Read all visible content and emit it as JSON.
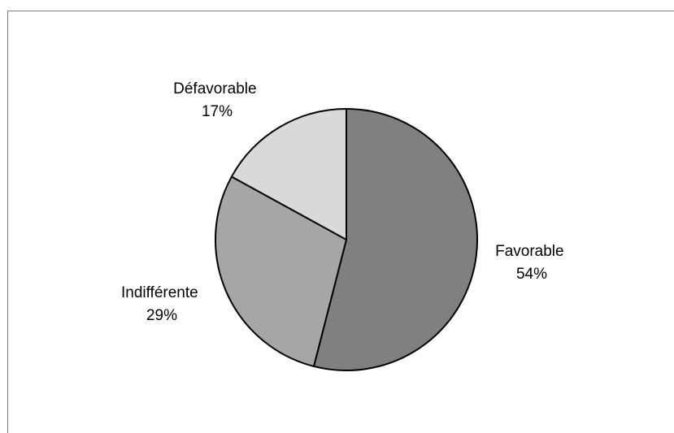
{
  "chart_data": {
    "type": "pie",
    "title": "",
    "slices": [
      {
        "label": "Favorable",
        "value": 54,
        "value_label": "54%",
        "color": "#808080"
      },
      {
        "label": "Indifférente",
        "value": 29,
        "value_label": "29%",
        "color": "#a6a6a6"
      },
      {
        "label": "Défavorable",
        "value": 17,
        "value_label": "17%",
        "color": "#d9d9d9"
      }
    ],
    "start": "12 o'clock",
    "direction": "clockwise",
    "legend": "none",
    "labels_outside": true,
    "stroke_color": "#000000",
    "frame_color": "#808080"
  }
}
